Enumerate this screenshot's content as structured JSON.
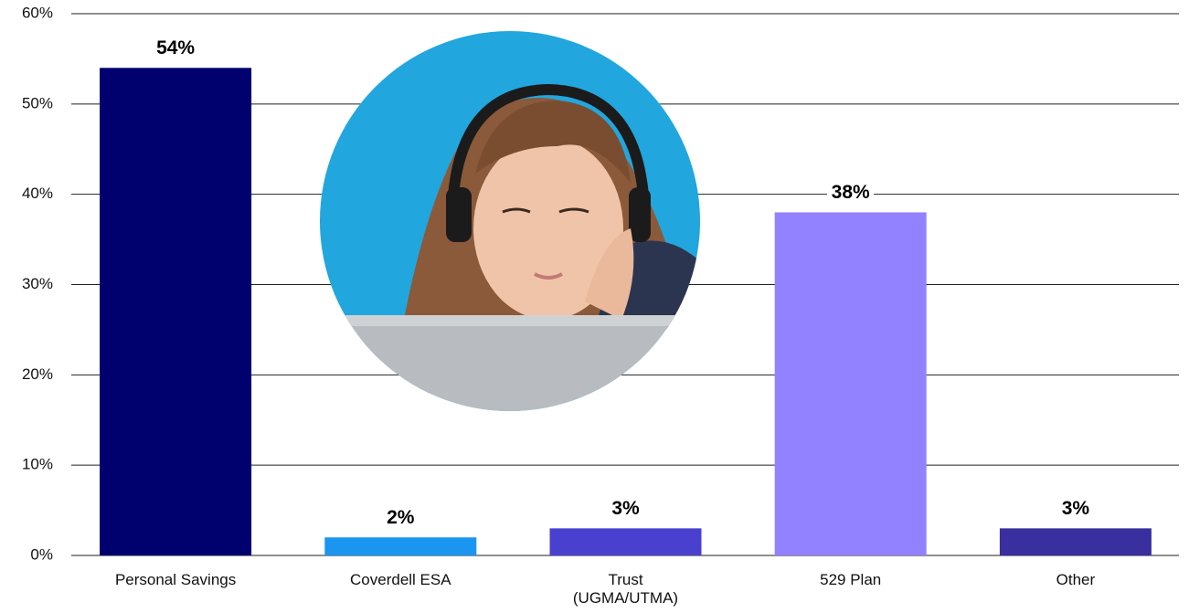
{
  "chart_data": {
    "type": "bar",
    "categories": [
      "Personal Savings",
      "Coverdell ESA",
      "Trust\n(UGMA/UTMA)",
      "529 Plan",
      "Other"
    ],
    "values": [
      54,
      2,
      3,
      38,
      3
    ],
    "value_labels": [
      "54%",
      "2%",
      "3%",
      "38%",
      "3%"
    ],
    "colors": [
      "#00006e",
      "#1a96f0",
      "#4a40cf",
      "#9282ff",
      "#3a2f9e"
    ],
    "ylim": [
      0,
      60
    ],
    "yticks": [
      {
        "value": 0,
        "label": "0%"
      },
      {
        "value": 10,
        "label": "10%"
      },
      {
        "value": 20,
        "label": "20%"
      },
      {
        "value": 30,
        "label": "30%"
      },
      {
        "value": 40,
        "label": "40%"
      },
      {
        "value": 50,
        "label": "50%"
      },
      {
        "value": 60,
        "label": "60%"
      }
    ],
    "grid": true
  }
}
